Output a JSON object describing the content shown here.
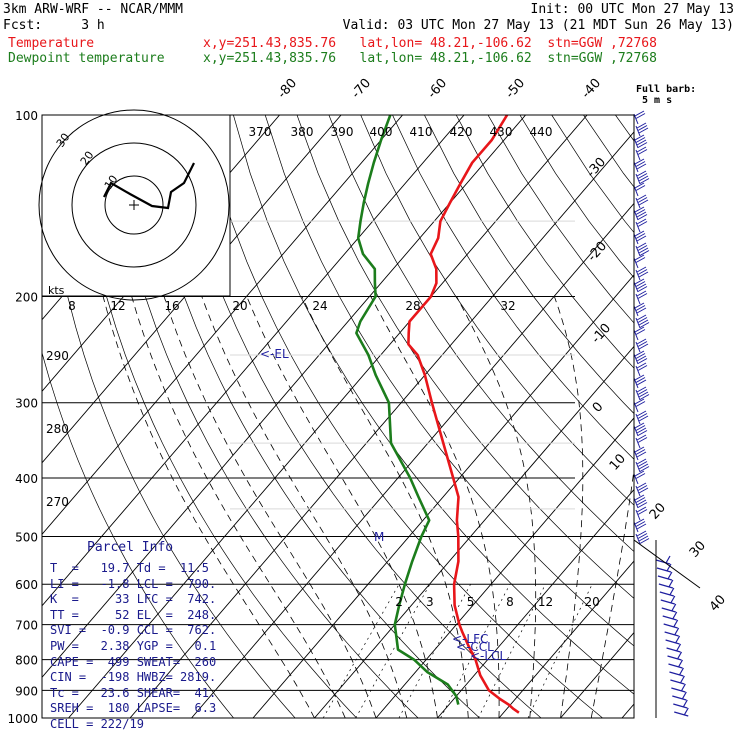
{
  "header": {
    "model": "3km ARW-WRF -- NCAR/MMM",
    "init": "Init: 00 UTC Mon 27 May 13",
    "fcst": "Fcst:     3 h",
    "valid": "Valid: 03 UTC Mon 27 May 13 (21 MDT Sun 26 May 13)",
    "temp_label": "Temperature",
    "temp_info": "x,y=251.43,835.76   lat,lon= 48.21,-106.62  stn=GGW ,72768",
    "dew_label": "Dewpoint temperature",
    "dew_info": "x,y=251.43,835.76   lat,lon= 48.21,-106.62  stn=GGW ,72768"
  },
  "colors": {
    "temperature": "#e8161a",
    "dewpoint": "#1c7d1c",
    "wind_barbs": "#1f1fa0",
    "panel_text": "#1a1a8c",
    "grid": "#000000"
  },
  "barb_legend": {
    "line1": "Full barb:",
    "line2": "5 m s"
  },
  "parcel_info": {
    "title": "Parcel Info",
    "rows": [
      "T  =   19.7 Td =  11.5",
      "LI =   -1.8 LCL =  790.",
      "K  =     33 LFC =  742.",
      "TT =     52 EL  =  248.",
      "SVI =  -0.9 CCL =  762.",
      "PW =   2.38 YGP =   0.1",
      "CAPE =  499 SWEAT=  260",
      "CIN =  -198 HWBZ= 2819.",
      "Tc =   23.6 SHEAR=  41.",
      "SREH =  180 LAPSE=  6.3",
      "CELL = 222/19"
    ]
  },
  "hodograph": {
    "speed_label": "kts",
    "rings": [
      "10",
      "20",
      "30"
    ],
    "speed_axis": [
      "8",
      "12",
      "16",
      "20",
      "24",
      "28",
      "32"
    ]
  },
  "chart_data": {
    "type": "line",
    "title": "",
    "ylabel": "",
    "pressure_levels": [
      "100",
      "200",
      "300",
      "400",
      "500",
      "600",
      "700",
      "800",
      "900",
      "1000"
    ],
    "isotherm_labels": [
      "-80",
      "-70",
      "-60",
      "-50",
      "-40",
      "-30",
      "-20",
      "-10",
      "0",
      "10",
      "20",
      "30",
      "40"
    ],
    "theta_labels": [
      "370",
      "380",
      "390",
      "400",
      "410",
      "420",
      "430",
      "440"
    ],
    "theta_left_labels": [
      "290",
      "280",
      "270"
    ],
    "mixing_ratio_labels": [
      "2",
      "3",
      "5",
      "8",
      "12",
      "20"
    ],
    "annotations": [
      "<-EL",
      "M",
      "<-LFC",
      "<-CCL",
      "<-LCL"
    ],
    "series": [
      {
        "name": "Temperature",
        "points": [
          [
            980,
            22.5
          ],
          [
            965,
            21
          ],
          [
            950,
            19.7
          ],
          [
            930,
            17.5
          ],
          [
            900,
            14.5
          ],
          [
            850,
            11
          ],
          [
            800,
            8
          ],
          [
            760,
            5
          ],
          [
            720,
            2
          ],
          [
            700,
            0.5
          ],
          [
            650,
            -3
          ],
          [
            600,
            -6
          ],
          [
            550,
            -8.5
          ],
          [
            500,
            -12
          ],
          [
            470,
            -14.5
          ],
          [
            430,
            -17.5
          ],
          [
            400,
            -21
          ],
          [
            350,
            -27.5
          ],
          [
            300,
            -35
          ],
          [
            270,
            -40
          ],
          [
            250,
            -44
          ],
          [
            240,
            -47
          ],
          [
            230,
            -48.5
          ],
          [
            220,
            -50
          ],
          [
            210,
            -50
          ],
          [
            200,
            -50
          ],
          [
            190,
            -51
          ],
          [
            180,
            -53
          ],
          [
            170,
            -56
          ],
          [
            160,
            -57
          ],
          [
            150,
            -59
          ],
          [
            140,
            -60
          ],
          [
            130,
            -61
          ],
          [
            120,
            -62
          ],
          [
            110,
            -62
          ],
          [
            100,
            -63
          ]
        ]
      },
      {
        "name": "Dewpoint temperature",
        "points": [
          [
            950,
            11.5
          ],
          [
            920,
            10
          ],
          [
            880,
            7
          ],
          [
            840,
            2
          ],
          [
            800,
            -2
          ],
          [
            770,
            -6
          ],
          [
            700,
            -10
          ],
          [
            650,
            -12
          ],
          [
            600,
            -14
          ],
          [
            550,
            -16
          ],
          [
            500,
            -18
          ],
          [
            470,
            -19
          ],
          [
            430,
            -24
          ],
          [
            400,
            -28
          ],
          [
            350,
            -36
          ],
          [
            300,
            -42
          ],
          [
            270,
            -48
          ],
          [
            250,
            -52
          ],
          [
            230,
            -57
          ],
          [
            220,
            -58
          ],
          [
            200,
            -59
          ],
          [
            190,
            -61
          ],
          [
            180,
            -63
          ],
          [
            170,
            -67
          ],
          [
            160,
            -70
          ],
          [
            150,
            -72
          ],
          [
            140,
            -74
          ],
          [
            130,
            -76
          ],
          [
            120,
            -78
          ],
          [
            110,
            -80
          ],
          [
            100,
            -82
          ]
        ]
      }
    ],
    "hodograph_path": [
      [
        194,
        163
      ],
      [
        184,
        183
      ],
      [
        171,
        192
      ],
      [
        168,
        208
      ],
      [
        152,
        206
      ],
      [
        130,
        194
      ],
      [
        111,
        183
      ],
      [
        104,
        197
      ]
    ]
  }
}
